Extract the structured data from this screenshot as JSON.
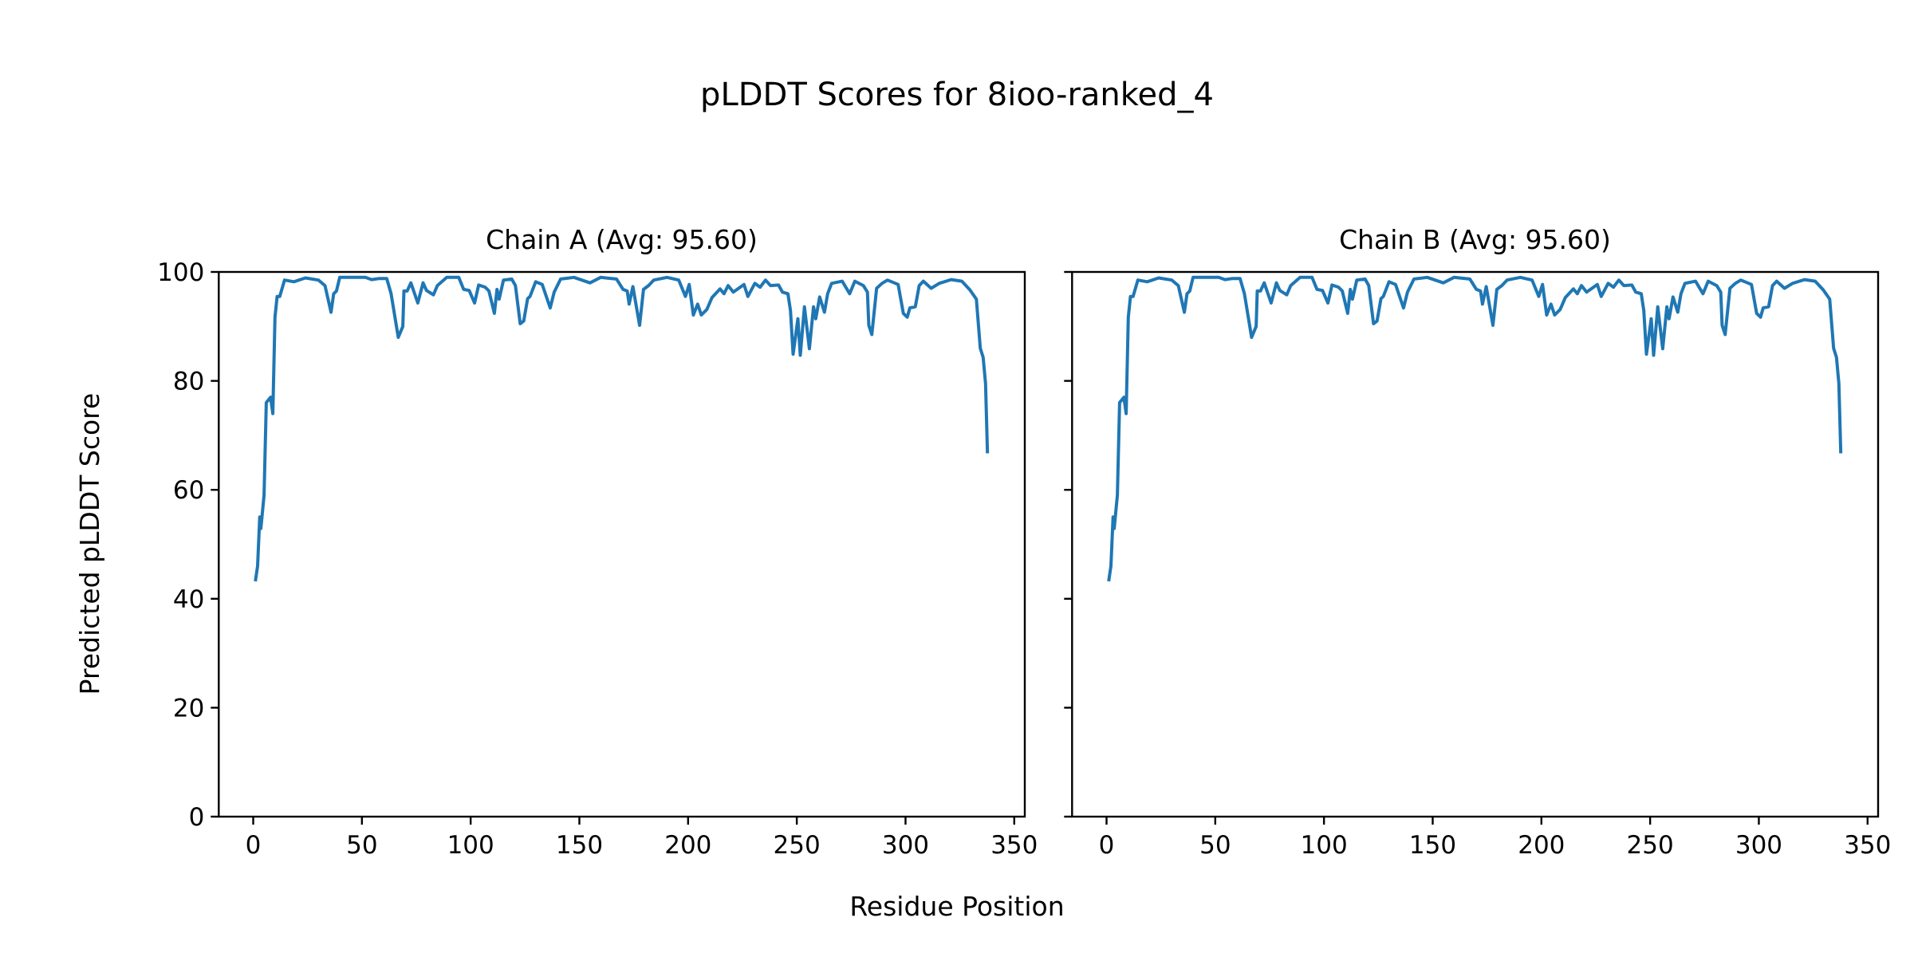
{
  "chart_data": {
    "type": "line",
    "title": "pLDDT Scores for 8ioo-ranked_4",
    "xlabel": "Residue Position",
    "ylabel": "Predicted pLDDT Score",
    "ylim": [
      0,
      100
    ],
    "xlim": [
      -15.85,
      354.85
    ],
    "xticks": [
      0,
      50,
      100,
      150,
      200,
      250,
      300,
      350
    ],
    "yticks": [
      0,
      20,
      40,
      60,
      80,
      100
    ],
    "grid": false,
    "color": "#1f77b4",
    "panels": [
      {
        "title": "Chain A (Avg: 95.60)",
        "series_ref": "profile"
      },
      {
        "title": "Chain B (Avg: 95.60)",
        "series_ref": "profile"
      }
    ],
    "profile": {
      "x": [
        1,
        2,
        3,
        3.5,
        5,
        6,
        8,
        9,
        10,
        11,
        12.2,
        14.4,
        18.7,
        24,
        30,
        33,
        35.8,
        37,
        38.3,
        39.8,
        45,
        51.6,
        54.5,
        58,
        61.4,
        63.4,
        66.7,
        68.8,
        69.3,
        70.8,
        72.5,
        75.7,
        78.1,
        79.7,
        82.9,
        84.7,
        89,
        94.5,
        96.8,
        99.3,
        101.8,
        103.7,
        106.7,
        108.4,
        110.9,
        112.1,
        113.1,
        115.1,
        118.9,
        120.6,
        122.8,
        124.4,
        126.2,
        127.3,
        129.9,
        132.9,
        136.6,
        138.4,
        141.4,
        147.5,
        154.9,
        159.8,
        167.1,
        170.1,
        172,
        172.9,
        174.6,
        177.7,
        179.5,
        181.8,
        184.2,
        190.3,
        195.7,
        198.8,
        200.5,
        202.4,
        204.4,
        206.1,
        208.6,
        211,
        214.7,
        216.5,
        218.4,
        220.8,
        225.7,
        227.5,
        230.7,
        233.1,
        235.6,
        237.9,
        241.6,
        243.4,
        245.9,
        247.1,
        248.3,
        250.5,
        251.6,
        253.5,
        255.8,
        257.7,
        258.7,
        260.5,
        262.7,
        264.2,
        266,
        270.9,
        274.3,
        276.7,
        280.6,
        282.5,
        283.1,
        284.5,
        286.7,
        289.2,
        291.7,
        296.6,
        299,
        300.8,
        302,
        304.5,
        306.3,
        308.2,
        311.8,
        315.5,
        321,
        325.9,
        329.6,
        332.6,
        334.4,
        335.7,
        336.8,
        337.7
      ],
      "y": [
        43.2,
        46,
        55,
        52.9,
        59,
        76,
        77,
        74,
        91.7,
        95.5,
        95.5,
        98.5,
        98.2,
        98.9,
        98.5,
        97.5,
        92.6,
        96,
        96.5,
        99,
        99,
        99,
        98.6,
        98.8,
        98.8,
        96,
        88,
        90,
        96.5,
        96.5,
        98,
        94.3,
        98,
        96.6,
        95.8,
        97.5,
        99,
        99,
        96.8,
        96.6,
        94.3,
        97.6,
        97.2,
        96.5,
        92.4,
        96.8,
        95,
        98.5,
        98.7,
        97.5,
        90.5,
        91,
        95.1,
        95.5,
        98.2,
        97.7,
        93.4,
        96.3,
        98.7,
        99,
        98,
        99,
        98.7,
        96.8,
        96.5,
        94.1,
        97.3,
        90.2,
        96.8,
        97.5,
        98.5,
        99,
        98.5,
        95.5,
        97.7,
        92.1,
        94.1,
        92.1,
        93.1,
        95.3,
        96.9,
        96,
        97.5,
        96.3,
        97.7,
        95.5,
        97.9,
        97.2,
        98.5,
        97.5,
        97.6,
        96.3,
        96,
        92.9,
        84.9,
        91.4,
        84.7,
        93.6,
        85.9,
        93.6,
        91.4,
        95.4,
        92.6,
        96,
        97.9,
        98.3,
        96,
        98.3,
        97.5,
        96.3,
        90.2,
        88.5,
        97,
        97.9,
        98.5,
        97.7,
        92.4,
        91.7,
        93.4,
        93.6,
        97.5,
        98.3,
        97,
        97.9,
        98.6,
        98.3,
        96.7,
        95,
        86,
        84.3,
        79.5,
        66.7
      ]
    }
  }
}
